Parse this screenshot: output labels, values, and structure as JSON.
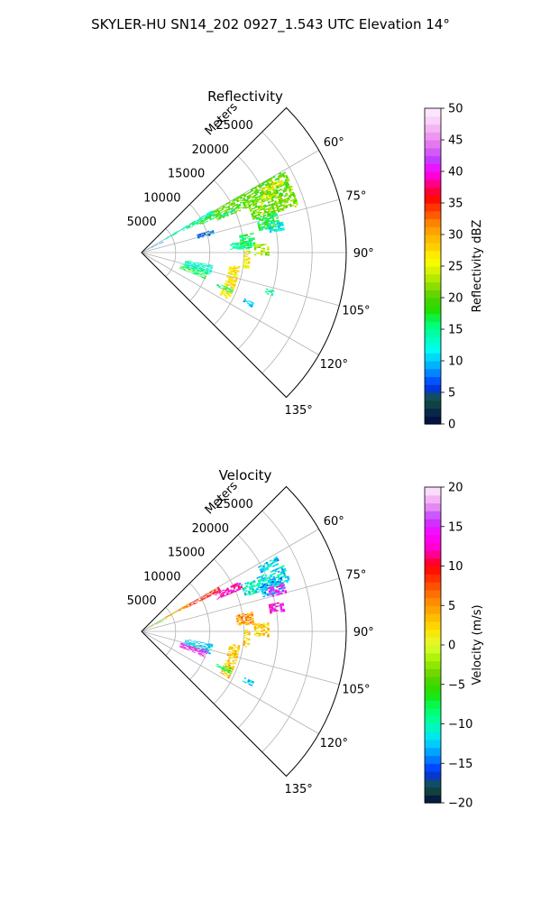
{
  "figure": {
    "suptitle": "SKYLER-HU  SN14_202  0927_1.543 UTC Elevation 14°"
  },
  "colors": {
    "grid": "#b0b0b0",
    "frame": "#000000",
    "background": "#ffffff"
  },
  "chart_data": [
    {
      "type": "heatmap",
      "projection": "polar sector",
      "title": "Reflectivity",
      "radial_axis_label": "Meters",
      "radial_ticks": [
        5000,
        10000,
        15000,
        20000,
        25000
      ],
      "radial_tick_labels": [
        "5000",
        "10000",
        "15000",
        "20000",
        "25000"
      ],
      "radial_range": [
        0,
        30000
      ],
      "azimuth_range_deg": [
        45,
        135
      ],
      "azimuth_ticks_deg": [
        60,
        75,
        90,
        105,
        120,
        135
      ],
      "azimuth_tick_labels": [
        "60°",
        "75°",
        "90°",
        "105°",
        "120°",
        "135°"
      ],
      "grid": true,
      "colorbar": {
        "label": "Reflectivity dBZ",
        "range": [
          0,
          50
        ],
        "ticks": [
          0,
          5,
          10,
          15,
          20,
          25,
          30,
          35,
          40,
          45,
          50
        ],
        "tick_labels": [
          "0",
          "5",
          "10",
          "15",
          "20",
          "25",
          "30",
          "35",
          "40",
          "45",
          "50"
        ],
        "stops": [
          [
            0,
            "#000a40"
          ],
          [
            2,
            "#0a2a4a"
          ],
          [
            4,
            "#15553a"
          ],
          [
            6,
            "#0030ff"
          ],
          [
            8,
            "#0080ff"
          ],
          [
            10,
            "#00c8ff"
          ],
          [
            12,
            "#00ffee"
          ],
          [
            14,
            "#00ffb0"
          ],
          [
            16,
            "#00ff70"
          ],
          [
            18,
            "#20e000"
          ],
          [
            20,
            "#50d000"
          ],
          [
            22,
            "#90e000"
          ],
          [
            24,
            "#d0f000"
          ],
          [
            26,
            "#ffff00"
          ],
          [
            28,
            "#ffd000"
          ],
          [
            30,
            "#ffb000"
          ],
          [
            32,
            "#ff8000"
          ],
          [
            34,
            "#ff4000"
          ],
          [
            36,
            "#ff0000"
          ],
          [
            38,
            "#ff0080"
          ],
          [
            40,
            "#ff00ff"
          ],
          [
            42,
            "#c040ff"
          ],
          [
            44,
            "#e070f0"
          ],
          [
            46,
            "#f0a0f0"
          ],
          [
            48,
            "#f8d0f8"
          ],
          [
            50,
            "#fff0ff"
          ]
        ]
      },
      "echo_regions": [
        {
          "az": [
            60,
            67
          ],
          "r": [
            12000,
            24000
          ],
          "value": 20
        },
        {
          "az": [
            67,
            73
          ],
          "r": [
            17000,
            24000
          ],
          "value": 21
        },
        {
          "az": [
            62,
            64
          ],
          "r": [
            20000,
            23000
          ],
          "value": 26
        },
        {
          "az": [
            65,
            67
          ],
          "r": [
            18500,
            21500
          ],
          "value": 24
        },
        {
          "az": [
            59,
            62
          ],
          "r": [
            4000,
            12000
          ],
          "value": 14
        },
        {
          "az": [
            61,
            63
          ],
          "r": [
            6500,
            11500
          ],
          "value": 16
        },
        {
          "az": [
            62,
            65
          ],
          "r": [
            9500,
            13000
          ],
          "value": 18
        },
        {
          "az": [
            65,
            66
          ],
          "r": [
            13000,
            15000
          ],
          "value": 12
        },
        {
          "az": [
            73,
            79
          ],
          "r": [
            17500,
            20500
          ],
          "value": 17
        },
        {
          "az": [
            77,
            81
          ],
          "r": [
            19000,
            21000
          ],
          "value": 12
        },
        {
          "az": [
            80,
            86
          ],
          "r": [
            14500,
            16500
          ],
          "value": 17
        },
        {
          "az": [
            86,
            91
          ],
          "r": [
            16500,
            18500
          ],
          "value": 22
        },
        {
          "az": [
            84,
            88
          ],
          "r": [
            13000,
            16000
          ],
          "value": 15
        },
        {
          "az": [
            89,
            98
          ],
          "r": [
            15000,
            15800
          ],
          "value": 26
        },
        {
          "az": [
            98,
            118
          ],
          "r": [
            13000,
            14500
          ],
          "value": 27
        },
        {
          "az": [
            100,
            108
          ],
          "r": [
            6500,
            10500
          ],
          "value": 13
        },
        {
          "az": [
            106,
            112
          ],
          "r": [
            6000,
            10000
          ],
          "value": 17
        },
        {
          "az": [
            112,
            114
          ],
          "r": [
            12000,
            14500
          ],
          "value": 15
        },
        {
          "az": [
            114,
            116
          ],
          "r": [
            16500,
            18000
          ],
          "value": 10
        },
        {
          "az": [
            106,
            108
          ],
          "r": [
            19000,
            20000
          ],
          "value": 14
        },
        {
          "az": [
            72,
            76
          ],
          "r": [
            8500,
            11000
          ],
          "value": 7
        },
        {
          "az": [
            62,
            65
          ],
          "r": [
            1000,
            3500
          ],
          "value": 10
        }
      ]
    },
    {
      "type": "heatmap",
      "projection": "polar sector",
      "title": "Velocity",
      "radial_axis_label": "Meters",
      "radial_ticks": [
        5000,
        10000,
        15000,
        20000,
        25000
      ],
      "radial_tick_labels": [
        "5000",
        "10000",
        "15000",
        "20000",
        "25000"
      ],
      "radial_range": [
        0,
        30000
      ],
      "azimuth_range_deg": [
        45,
        135
      ],
      "azimuth_ticks_deg": [
        60,
        75,
        90,
        105,
        120,
        135
      ],
      "azimuth_tick_labels": [
        "60°",
        "75°",
        "90°",
        "105°",
        "120°",
        "135°"
      ],
      "grid": true,
      "colorbar": {
        "label": "Velocity (m/s)",
        "range": [
          -20,
          20
        ],
        "ticks": [
          -20,
          -15,
          -10,
          -5,
          0,
          5,
          10,
          15,
          20
        ],
        "tick_labels": [
          "−20",
          "−15",
          "−10",
          "−5",
          "0",
          "5",
          "10",
          "15",
          "20"
        ],
        "stops": [
          [
            -20,
            "#000a40"
          ],
          [
            -18,
            "#15553a"
          ],
          [
            -16,
            "#0030ff"
          ],
          [
            -14,
            "#0090ff"
          ],
          [
            -12,
            "#00e0ff"
          ],
          [
            -10,
            "#00ffb0"
          ],
          [
            -8,
            "#00ff60"
          ],
          [
            -6,
            "#20e000"
          ],
          [
            -4,
            "#60d000"
          ],
          [
            -2,
            "#a0f000"
          ],
          [
            0,
            "#e0ff30"
          ],
          [
            2,
            "#ffe000"
          ],
          [
            4,
            "#ffb000"
          ],
          [
            6,
            "#ff8000"
          ],
          [
            8,
            "#ff4000"
          ],
          [
            10,
            "#ff0000"
          ],
          [
            12,
            "#ff00c0"
          ],
          [
            14,
            "#ff00ff"
          ],
          [
            16,
            "#c040ff"
          ],
          [
            18,
            "#f0a0f0"
          ],
          [
            20,
            "#fff0ff"
          ]
        ]
      },
      "echo_regions": [
        {
          "az": [
            60,
            63
          ],
          "r": [
            7000,
            13000
          ],
          "value": 9
        },
        {
          "az": [
            63,
            67
          ],
          "r": [
            12000,
            16000
          ],
          "value": 13
        },
        {
          "az": [
            65,
            71
          ],
          "r": [
            16000,
            23000
          ],
          "value": -11
        },
        {
          "az": [
            69,
            74
          ],
          "r": [
            18500,
            22000
          ],
          "value": -13
        },
        {
          "az": [
            71,
            75
          ],
          "r": [
            19500,
            22000
          ],
          "value": 15
        },
        {
          "az": [
            61,
            64
          ],
          "r": [
            19500,
            22500
          ],
          "value": -12
        },
        {
          "az": [
            59,
            62
          ],
          "r": [
            4000,
            8000
          ],
          "value": 4
        },
        {
          "az": [
            62,
            65
          ],
          "r": [
            1000,
            4000
          ],
          "value": -3
        },
        {
          "az": [
            78,
            82
          ],
          "r": [
            19000,
            21000
          ],
          "value": 14
        },
        {
          "az": [
            80,
            86
          ],
          "r": [
            14000,
            16500
          ],
          "value": 5
        },
        {
          "az": [
            86,
            92
          ],
          "r": [
            16500,
            18500
          ],
          "value": 3
        },
        {
          "az": [
            89,
            98
          ],
          "r": [
            15000,
            15800
          ],
          "value": 2
        },
        {
          "az": [
            98,
            118
          ],
          "r": [
            13000,
            14500
          ],
          "value": 3
        },
        {
          "az": [
            100,
            108
          ],
          "r": [
            6500,
            10500
          ],
          "value": -12
        },
        {
          "az": [
            106,
            112
          ],
          "r": [
            6000,
            10000
          ],
          "value": 14
        },
        {
          "az": [
            112,
            115
          ],
          "r": [
            12000,
            14500
          ],
          "value": -7
        },
        {
          "az": [
            114,
            116
          ],
          "r": [
            16500,
            18000
          ],
          "value": -12
        }
      ]
    }
  ]
}
